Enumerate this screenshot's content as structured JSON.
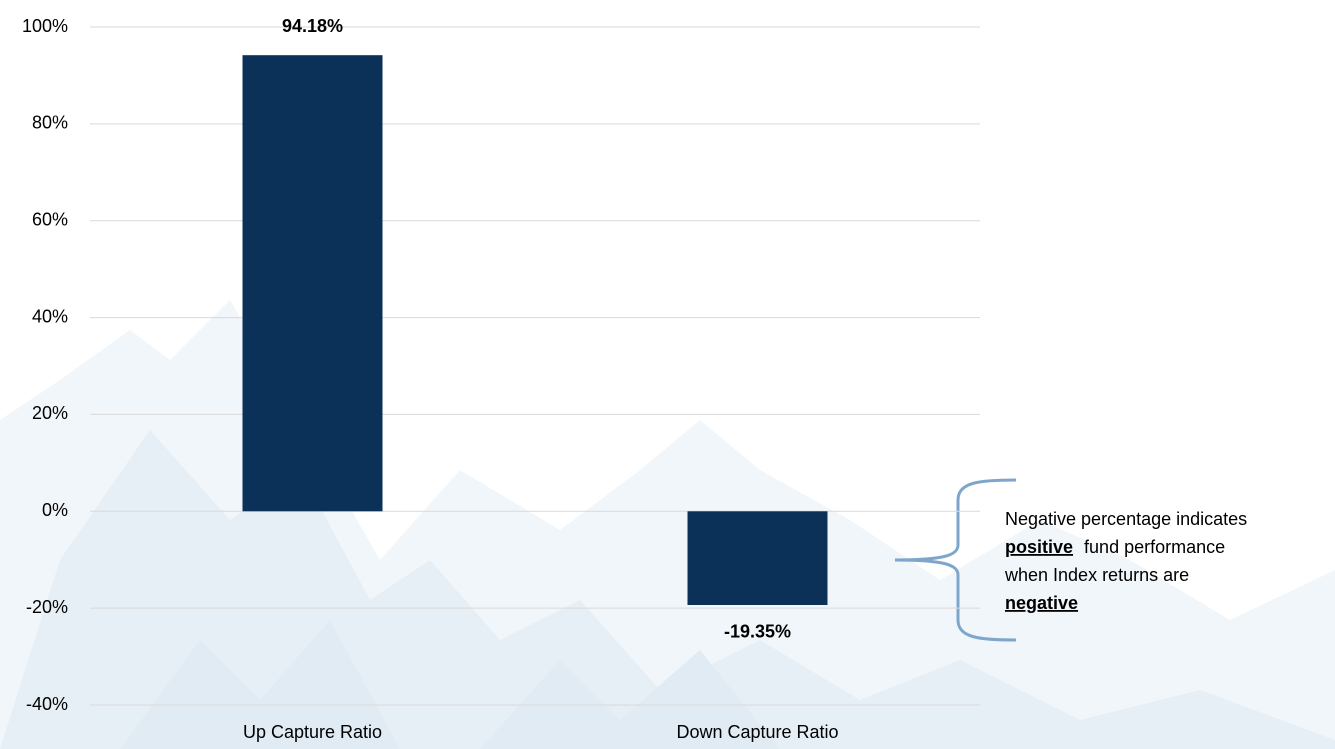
{
  "chart_data": {
    "type": "bar",
    "categories": [
      "Up Capture Ratio",
      "Down Capture Ratio"
    ],
    "values": [
      94.18,
      -19.35
    ],
    "value_labels": [
      "94.18%",
      "-19.35%"
    ],
    "color": "#0b3158",
    "ylim": [
      -40,
      100
    ],
    "yticks": [
      {
        "value": -40,
        "label": "-40%"
      },
      {
        "value": -20,
        "label": "-20%"
      },
      {
        "value": 0,
        "label": "0%"
      },
      {
        "value": 20,
        "label": "20%"
      },
      {
        "value": 40,
        "label": "40%"
      },
      {
        "value": 60,
        "label": "60%"
      },
      {
        "value": 80,
        "label": "80%"
      },
      {
        "value": 100,
        "label": "100%"
      }
    ],
    "grid": true,
    "annotation": [
      [
        "Negative percentage indicates"
      ],
      [
        "positive",
        "fund performance"
      ],
      [
        "when Index returns are"
      ],
      [
        "negative"
      ]
    ]
  }
}
